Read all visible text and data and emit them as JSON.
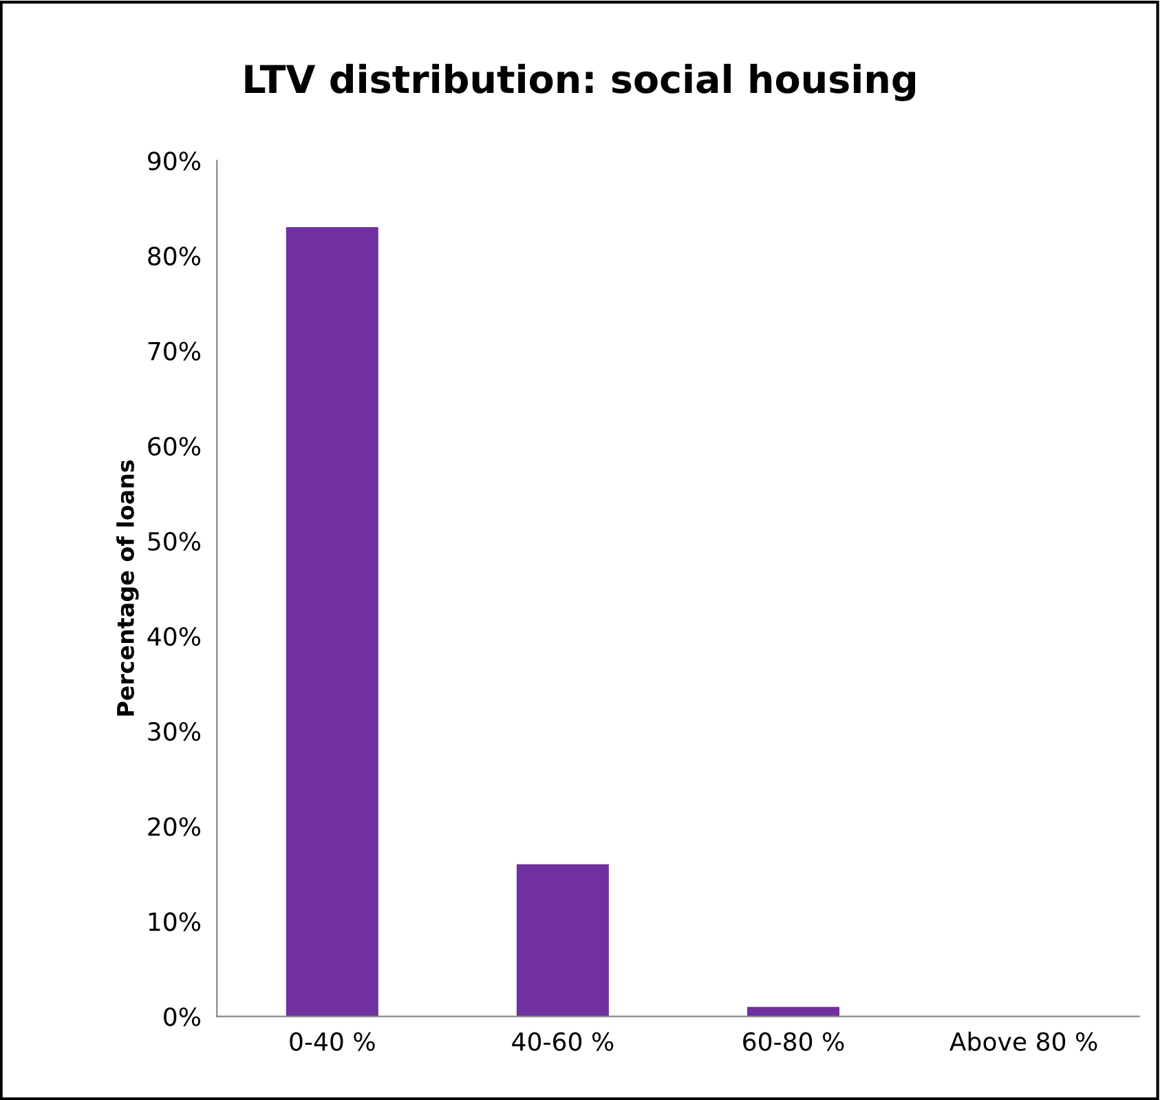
{
  "chart_data": {
    "type": "bar",
    "title": "LTV distribution: social housing",
    "ylabel": "Percentage of loans",
    "categories": [
      "0-40 %",
      "40-60 %",
      "60-80 %",
      "Above 80 %"
    ],
    "values": [
      83,
      16,
      1,
      0
    ],
    "color": "#7030a0",
    "ylim": [
      0,
      90
    ],
    "yticks": [
      {
        "value": 0,
        "label": "0%"
      },
      {
        "value": 10,
        "label": "10%"
      },
      {
        "value": 20,
        "label": "20%"
      },
      {
        "value": 30,
        "label": "30%"
      },
      {
        "value": 40,
        "label": "40%"
      },
      {
        "value": 50,
        "label": "50%"
      },
      {
        "value": 60,
        "label": "60%"
      },
      {
        "value": 70,
        "label": "70%"
      },
      {
        "value": 80,
        "label": "80%"
      },
      {
        "value": 90,
        "label": "90%"
      }
    ],
    "grid": false,
    "legend": false
  }
}
